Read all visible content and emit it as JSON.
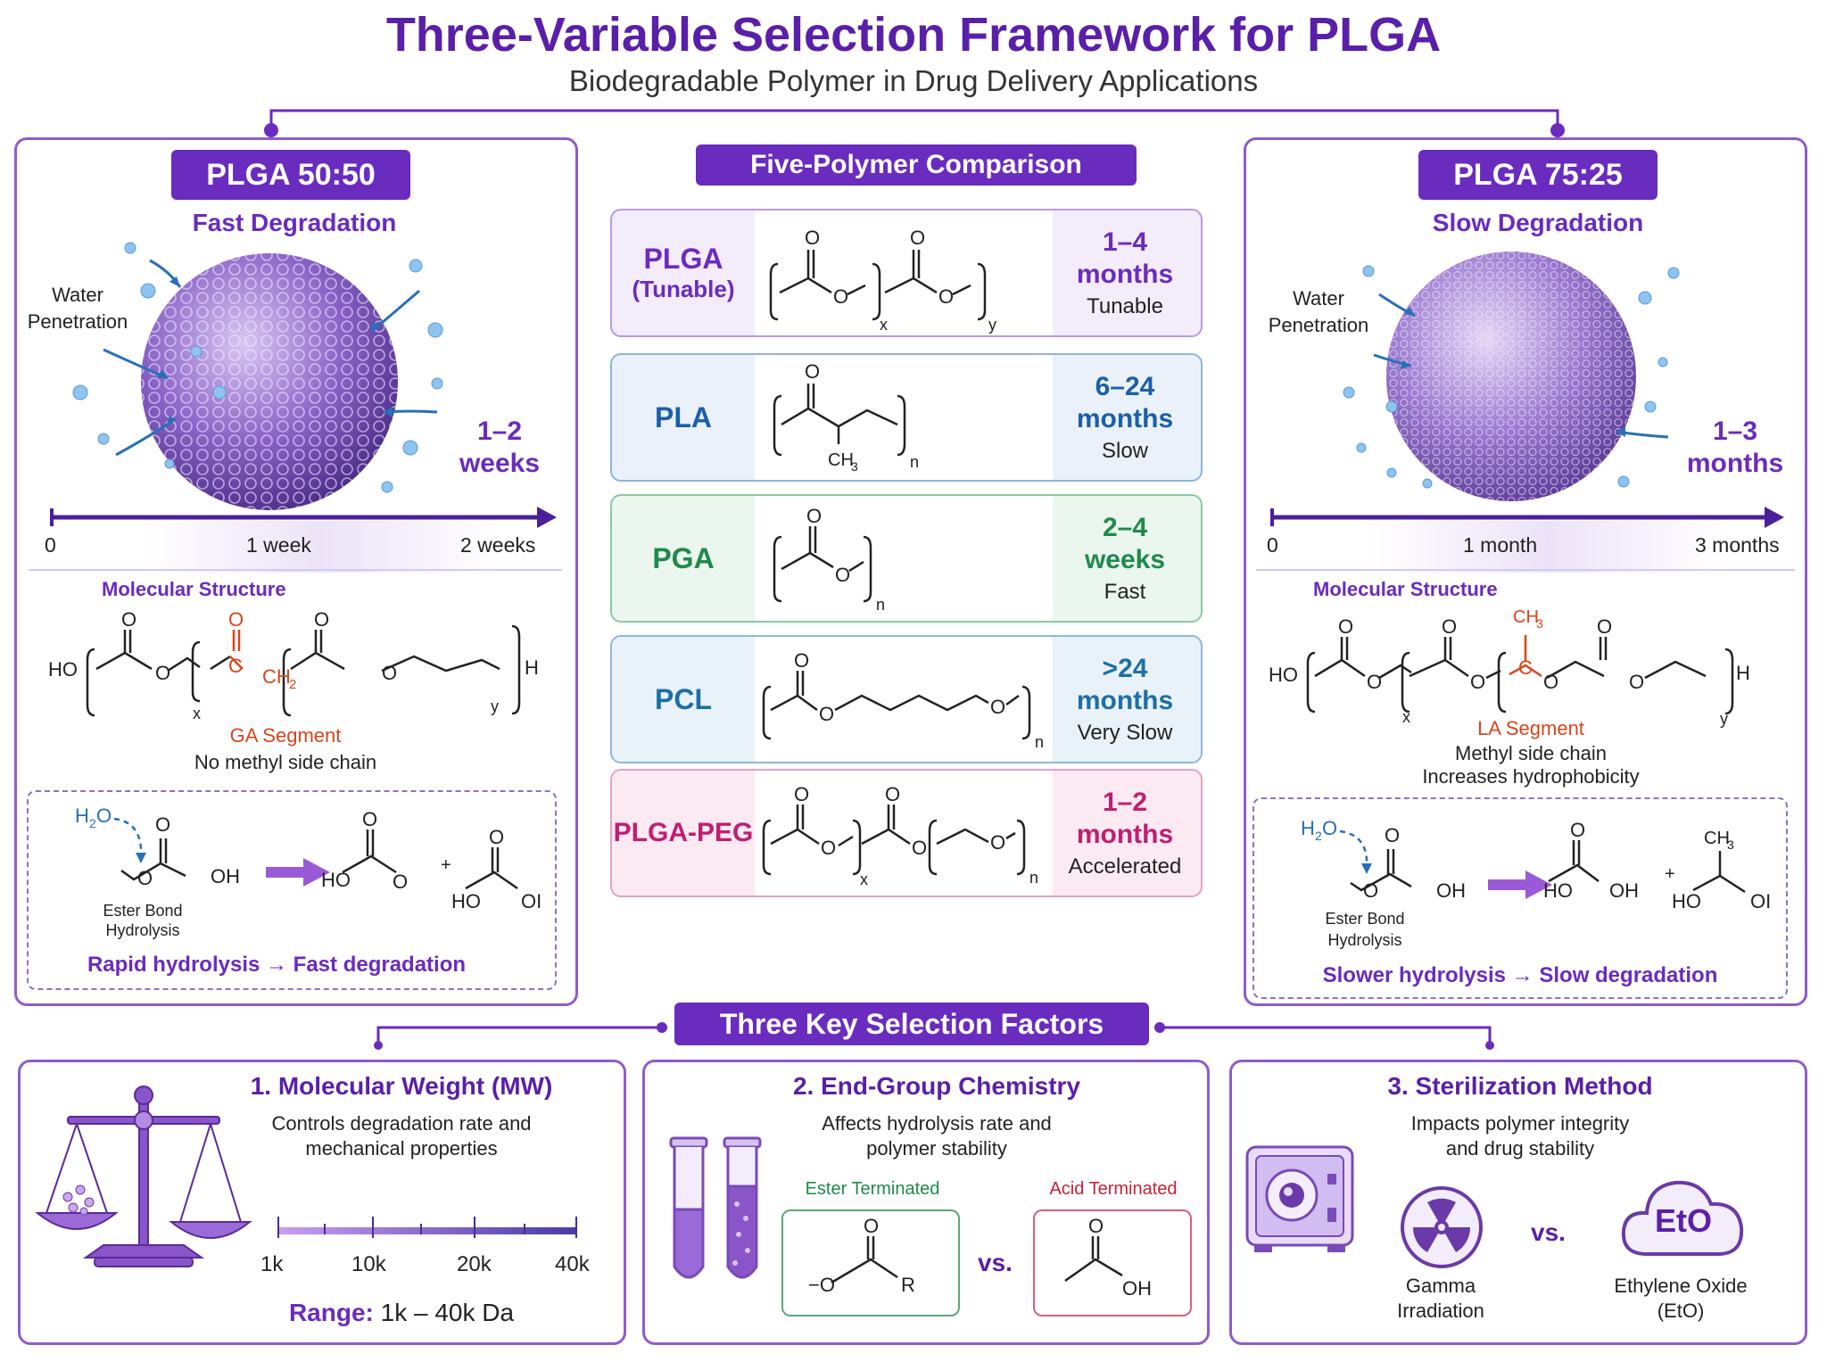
{
  "header": {
    "title": "Three-Variable Selection Framework for PLGA",
    "subtitle": "Biodegradable Polymer in Drug Delivery Applications"
  },
  "left_panel": {
    "tag": "PLGA 50:50",
    "subtitle": "Fast Degradation",
    "water_label_1": "Water",
    "water_label_2": "Penetration",
    "time_1": "1–2",
    "time_2": "weeks",
    "axis_ticks": [
      "0",
      "1 week",
      "2 weeks"
    ],
    "mol_heading": "Molecular Structure",
    "segment_label": "GA Segment",
    "segment_note": "No methyl side chain",
    "hydrolysis_label_1": "Ester Bond",
    "hydrolysis_label_2": "Hydrolysis",
    "hydrolysis_result": "Rapid hydrolysis → Fast degradation"
  },
  "right_panel": {
    "tag": "PLGA 75:25",
    "subtitle": "Slow Degradation",
    "water_label_1": "Water",
    "water_label_2": "Penetration",
    "time_1": "1–3",
    "time_2": "months",
    "axis_ticks": [
      "0",
      "1 month",
      "3 months"
    ],
    "mol_heading": "Molecular Structure",
    "segment_label": "LA Segment",
    "segment_note_1": "Methyl side chain",
    "segment_note_2": "Increases hydrophobicity",
    "hydrolysis_label_1": "Ester Bond",
    "hydrolysis_label_2": "Hydrolysis",
    "hydrolysis_result": "Slower hydrolysis → Slow degradation"
  },
  "comparison": {
    "heading": "Five-Polymer Comparison",
    "polymers": [
      {
        "name": "PLGA",
        "sub": "(Tunable)",
        "time_1": "1–4",
        "time_2": "months",
        "rate": "Tunable",
        "color": "#6a2bbf",
        "bg": "#f3ecfb"
      },
      {
        "name": "PLA",
        "sub": "",
        "time_1": "6–24",
        "time_2": "months",
        "rate": "Slow",
        "color": "#1c5fa8",
        "bg": "#eaf1fa"
      },
      {
        "name": "PGA",
        "sub": "",
        "time_1": "2–4",
        "time_2": "weeks",
        "rate": "Fast",
        "color": "#1f8a4c",
        "bg": "#eaf6ee"
      },
      {
        "name": "PCL",
        "sub": "",
        "time_1": ">24",
        "time_2": "months",
        "rate": "Very Slow",
        "color": "#1c6fa8",
        "bg": "#e9f2f8"
      },
      {
        "name": "PLGA-PEG",
        "sub": "",
        "time_1": "1–2",
        "time_2": "months",
        "rate": "Accelerated",
        "color": "#c01e70",
        "bg": "#fbeaf2"
      }
    ]
  },
  "factors": {
    "heading": "Three Key Selection Factors",
    "mw": {
      "title": "1. Molecular Weight (MW)",
      "desc_1": "Controls degradation rate and",
      "desc_2": "mechanical properties",
      "ticks": [
        "1k",
        "10k",
        "20k",
        "40k"
      ],
      "range_label": "Range:",
      "range_value": "1k – 40k Da"
    },
    "end_group": {
      "title": "2. End-Group Chemistry",
      "desc_1": "Affects hydrolysis rate and",
      "desc_2": "polymer stability",
      "ester_label": "Ester Terminated",
      "acid_label": "Acid Terminated",
      "vs": "vs."
    },
    "sterilization": {
      "title": "3. Sterilization Method",
      "desc_1": "Impacts polymer integrity",
      "desc_2": "and drug stability",
      "gamma_1": "Gamma",
      "gamma_2": "Irradiation",
      "vs": "vs.",
      "eto_icon_text": "EtO",
      "eto_1": "Ethylene Oxide",
      "eto_2": "(EtO)"
    }
  },
  "colors": {
    "accent": "#6a2bbf",
    "ga_red": "#d9451e",
    "ester_green": "#1f8a4c",
    "acid_red": "#c8203a"
  }
}
